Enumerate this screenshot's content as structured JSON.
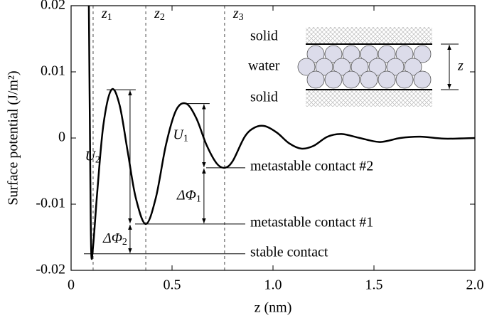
{
  "chart_data": {
    "type": "line",
    "xlabel": "z (nm)",
    "ylabel": "Surface potential (J/m²)",
    "xlim": [
      0,
      2.0
    ],
    "ylim": [
      -0.02,
      0.02
    ],
    "xticks": [
      0,
      0.5,
      {
        "value": 1,
        "label": "1.0"
      },
      1.5,
      {
        "value": 2,
        "label": "2.0"
      }
    ],
    "yticks": [
      -0.02,
      -0.01,
      0,
      0.01,
      0.02
    ],
    "series": [
      {
        "color": "#000000",
        "x": [
          0.088,
          0.095,
          0.1,
          0.11,
          0.13,
          0.16,
          0.2,
          0.24,
          0.28,
          0.32,
          0.37,
          0.42,
          0.47,
          0.52,
          0.57,
          0.62,
          0.67,
          0.72,
          0.76,
          0.8,
          0.86,
          0.91,
          0.96,
          1.02,
          1.08,
          1.14,
          1.2,
          1.27,
          1.34,
          1.43,
          1.53,
          1.63,
          1.73,
          1.85,
          2.0
        ],
        "values": [
          0.02,
          -0.005,
          -0.0175,
          -0.016,
          -0.008,
          0.002,
          0.0073,
          0.005,
          -0.002,
          -0.009,
          -0.013,
          -0.009,
          -0.001,
          0.0042,
          0.0052,
          0.003,
          -0.001,
          -0.0038,
          -0.0045,
          -0.0035,
          0.0002,
          0.0016,
          0.0018,
          0.0008,
          -0.0008,
          -0.0016,
          -0.0012,
          0.0002,
          0.0006,
          0.0,
          -0.0006,
          0.0,
          0.0002,
          -0.0001,
          0.0
        ]
      }
    ],
    "markers": [
      {
        "text": "z",
        "sub": "1",
        "x": 0.109
      },
      {
        "text": "z",
        "sub": "2",
        "x": 0.37
      },
      {
        "text": "z",
        "sub": "3",
        "x": 0.76
      }
    ],
    "levels": [
      {
        "label": "stable contact",
        "y": -0.0175
      },
      {
        "label": "metastable contact #1",
        "y": -0.013
      },
      {
        "label": "metastable contact #2",
        "y": -0.0045
      }
    ],
    "arrows": [
      {
        "text": "U",
        "sub": "2",
        "x": 0.292,
        "from": -0.013,
        "to": 0.0073
      },
      {
        "text": "ΔΦ",
        "sub": "2",
        "x": 0.292,
        "from": -0.0175,
        "to": -0.013
      },
      {
        "text": "U",
        "sub": "1",
        "x": 0.658,
        "from": -0.0045,
        "to": 0.0052
      },
      {
        "text": "ΔΦ",
        "sub": "1",
        "x": 0.658,
        "from": -0.013,
        "to": -0.0045
      }
    ],
    "inset": {
      "top": "solid",
      "middle": "water",
      "bottom": "solid",
      "gap": "z"
    }
  }
}
